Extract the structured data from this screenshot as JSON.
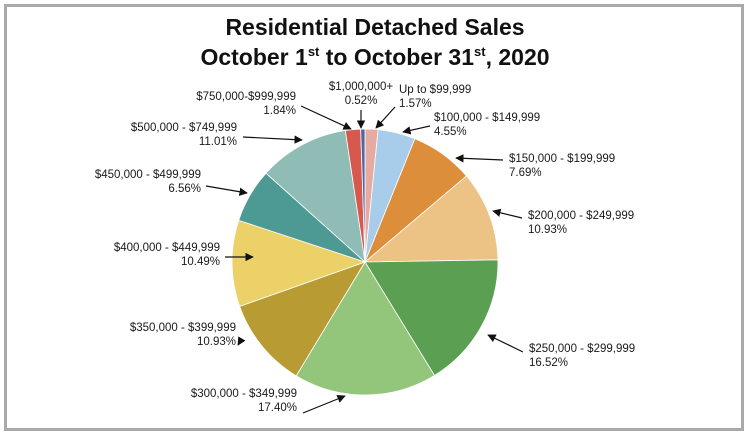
{
  "chart_data": {
    "type": "pie",
    "title": {
      "line1": "Residential Detached Sales",
      "line2_parts": [
        "October 1",
        "st",
        " to October 31",
        "st",
        ", 2020"
      ]
    },
    "slices": [
      {
        "label": "Up to $99,999",
        "pct_text": "1.57%",
        "value": 1.57,
        "color": "#e6aaa0"
      },
      {
        "label": "$100,000 - $149,999",
        "pct_text": "4.55%",
        "value": 4.55,
        "color": "#a8cdeb"
      },
      {
        "label": "$150,000 - $199,999",
        "pct_text": "7.69%",
        "value": 7.69,
        "color": "#dd8e3b"
      },
      {
        "label": "$200,000 - $249,999",
        "pct_text": "10.93%",
        "value": 10.93,
        "color": "#ecc285"
      },
      {
        "label": "$250,000 - $299,999",
        "pct_text": "16.52%",
        "value": 16.52,
        "color": "#5ba052"
      },
      {
        "label": "$300,000 - $349,999",
        "pct_text": "17.40%",
        "value": 17.4,
        "color": "#93c57b"
      },
      {
        "label": "$350,000 - $399,999",
        "pct_text": "10.93%",
        "value": 10.93,
        "color": "#b89b32"
      },
      {
        "label": "$400,000 - $449,999",
        "pct_text": "10.49%",
        "value": 10.49,
        "color": "#ecd168"
      },
      {
        "label": "$450,000 - $499,999",
        "pct_text": "6.56%",
        "value": 6.56,
        "color": "#4d9a94"
      },
      {
        "label": "$500,000 - $749,999",
        "pct_text": "11.01%",
        "value": 11.01,
        "color": "#8fbcb5"
      },
      {
        "label": "$750,000-$999,999",
        "pct_text": "1.84%",
        "value": 1.84,
        "color": "#d7584e"
      },
      {
        "label": "$1,000,000+",
        "pct_text": "0.52%",
        "value": 0.52,
        "color": "#4e68a6"
      }
    ]
  }
}
